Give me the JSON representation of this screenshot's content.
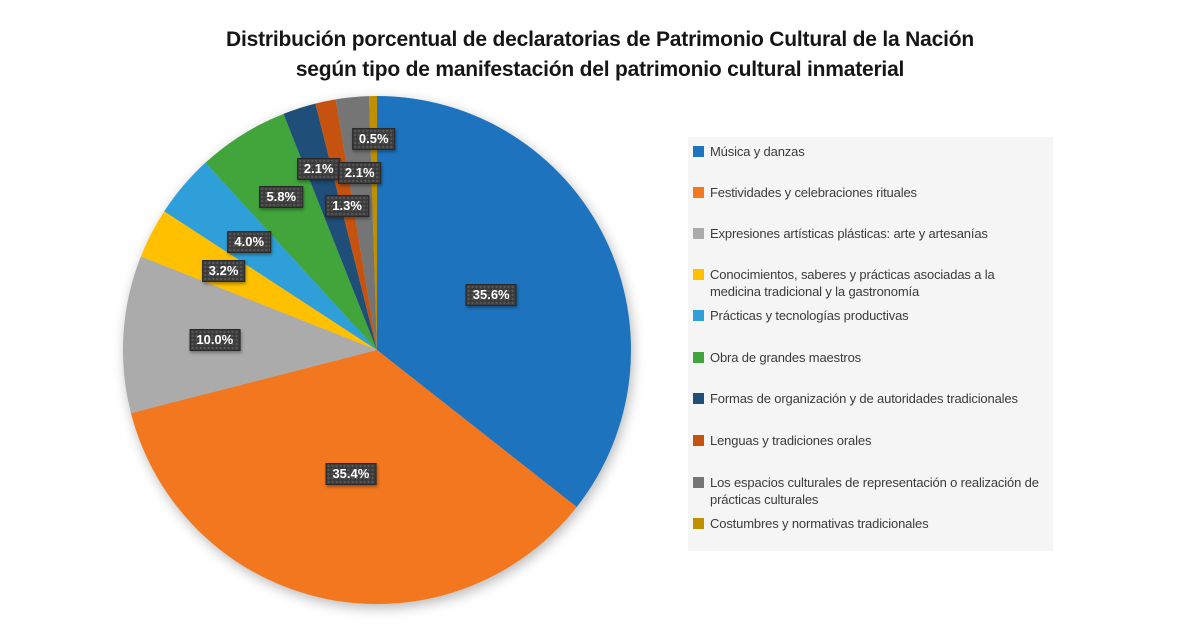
{
  "header": {
    "title_line1": "Distribución porcentual de declaratorias de Patrimonio Cultural de la Nación",
    "title_line2": "según tipo de manifestación del patrimonio cultural inmaterial"
  },
  "chart_data": {
    "type": "pie",
    "title": "Distribución porcentual de declaratorias de Patrimonio Cultural de la Nación según tipo de manifestación del patrimonio cultural inmaterial",
    "legend_position": "right",
    "start_angle_deg": 0,
    "direction": "clockwise",
    "value_format": "percent",
    "slices": [
      {
        "label": "Música y danzas",
        "value": 35.6,
        "display": "35.6%",
        "color": "#1E73BE"
      },
      {
        "label": "Festividades y celebraciones rituales",
        "value": 35.4,
        "display": "35.4%",
        "color": "#F3771E"
      },
      {
        "label": "Expresiones artísticas plásticas: arte y artesanías",
        "value": 10.0,
        "display": "10.0%",
        "color": "#ABABAB"
      },
      {
        "label": "Conocimientos, saberes y prácticas asociadas a la medicina tradicional y la gastronomía",
        "value": 3.2,
        "display": "3.2%",
        "color": "#FFC000"
      },
      {
        "label": "Prácticas y tecnologías productivas",
        "value": 4.0,
        "display": "4.0%",
        "color": "#2E9FD9"
      },
      {
        "label": "Obra de grandes maestros",
        "value": 5.8,
        "display": "5.8%",
        "color": "#42A53C"
      },
      {
        "label": "Formas de organización y de autoridades tradicionales",
        "value": 2.1,
        "display": "2.1%",
        "color": "#1F4E79"
      },
      {
        "label": "Lenguas y tradiciones orales",
        "value": 1.3,
        "display": "1.3%",
        "color": "#C5530F"
      },
      {
        "label": "Los espacios culturales de representación o realización de prácticas culturales",
        "value": 2.1,
        "display": "2.1%",
        "color": "#757575"
      },
      {
        "label": "Costumbres y normativas tradicionales",
        "value": 0.5,
        "display": "0.5%",
        "color": "#BF8F00"
      }
    ]
  },
  "colors": {
    "page_bg": "#FFFFFF",
    "title_text": "#161616",
    "label_box_bg": "#3B3B3B",
    "label_box_text": "#FFFFFF",
    "legend_panel_bg": "#F5F5F5",
    "legend_text": "#3B3B3B"
  }
}
